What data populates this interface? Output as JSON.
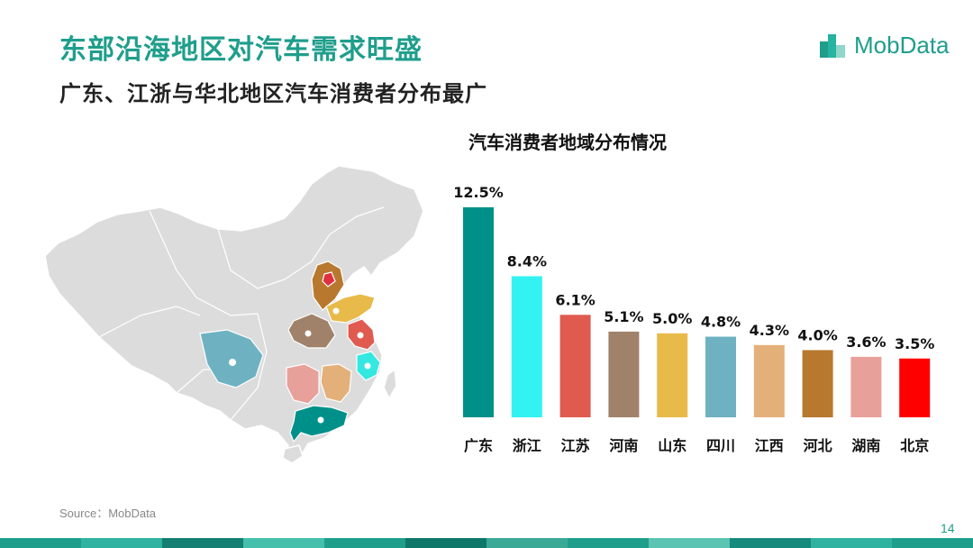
{
  "title": "东部沿海地区对汽车需求旺盛",
  "subtitle": "广东、江浙与华北地区汽车消费者分布最广",
  "logo": {
    "text": "MobData",
    "color": "#1f9e8c"
  },
  "source": "Source：MobData",
  "page_number": "14",
  "chart_data": {
    "type": "bar",
    "title": "汽车消费者地域分布情况",
    "categories": [
      "广东",
      "浙江",
      "江苏",
      "河南",
      "山东",
      "四川",
      "江西",
      "河北",
      "湖南",
      "北京"
    ],
    "values": [
      12.5,
      8.4,
      6.1,
      5.1,
      5.0,
      4.8,
      4.3,
      4.0,
      3.6,
      3.5
    ],
    "value_labels": [
      "12.5%",
      "8.4%",
      "6.1%",
      "5.1%",
      "5.0%",
      "4.8%",
      "4.3%",
      "4.0%",
      "3.6%",
      "3.5%"
    ],
    "colors": [
      "#00908a",
      "#33f2f2",
      "#e05a50",
      "#a0826a",
      "#e8ba4a",
      "#6eb2c2",
      "#e4b07a",
      "#b8782e",
      "#e8a09a",
      "#ff0000"
    ],
    "ylim": [
      0,
      12.5
    ],
    "grid": false,
    "legend": "none"
  },
  "map": {
    "base_color": "#dcdcdc",
    "highlight_colors": {
      "guangdong": "#00908a",
      "zhejiang": "#33e8e0",
      "jiangsu": "#e05a50",
      "henan": "#a0826a",
      "shandong": "#e8ba4a",
      "sichuan": "#6eb2c2",
      "jiangxi": "#e4b07a",
      "hebei": "#b8782e",
      "hunan": "#e8a09a",
      "beijing": "#e03040"
    }
  },
  "footer_colors": [
    "#1f9e8c",
    "#2fb3a0",
    "#147f72",
    "#45c0ad",
    "#1f9e8c",
    "#0f766a",
    "#3aa996",
    "#1f9e8c",
    "#5cc4b2",
    "#168a7c",
    "#2fb3a0",
    "#1f9e8c"
  ]
}
